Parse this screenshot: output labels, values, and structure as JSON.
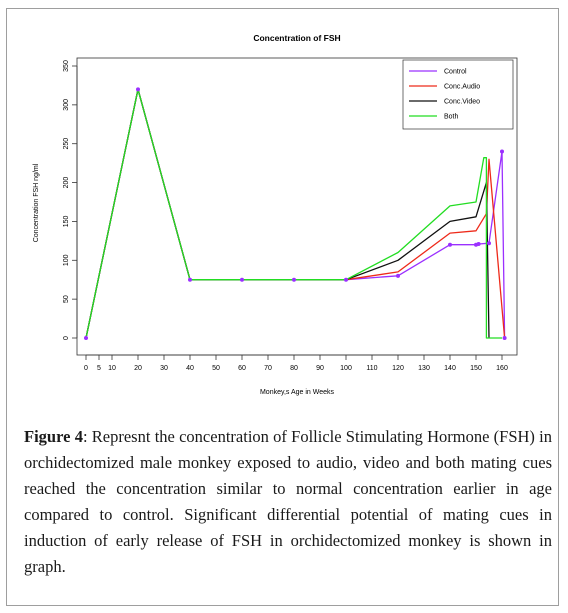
{
  "caption": {
    "label": "Figure 4",
    "text": ": Represnt the concentration of Follicle Stimulating Hormone (FSH) in orchidectomized male monkey exposed to audio, video and both mating cues reached the concentration similar to normal concentration earlier in age compared to control. Significant differential potential of mating cues in induction of early release of FSH in orchidectomized monkey is shown in graph."
  },
  "chart_data": {
    "type": "line",
    "title": "Concentration of FSH",
    "xlabel": "Monkey,s Age in Weeks",
    "ylabel": "Concentration FSH ng/ml",
    "xlim": [
      0,
      160
    ],
    "ylim": [
      0,
      350
    ],
    "x_ticks": [
      0,
      5,
      10,
      20,
      30,
      40,
      50,
      60,
      70,
      80,
      90,
      100,
      110,
      120,
      130,
      140,
      150,
      160
    ],
    "y_ticks": [
      0,
      50,
      100,
      150,
      200,
      250,
      300,
      350
    ],
    "grid": false,
    "legend_position": "top-right",
    "series": [
      {
        "name": "Control",
        "color": "#9b30ff",
        "markers": true,
        "x": [
          0,
          20,
          40,
          60,
          80,
          100,
          120,
          140,
          150,
          151,
          155,
          160,
          161
        ],
        "y": [
          0,
          320,
          75,
          75,
          75,
          75,
          80,
          120,
          120,
          121,
          122,
          240,
          0
        ]
      },
      {
        "name": "Conc.Audio",
        "color": "#ee2a1a",
        "markers": false,
        "x": [
          0,
          20,
          40,
          60,
          80,
          100,
          120,
          140,
          150,
          154,
          155,
          161
        ],
        "y": [
          0,
          320,
          75,
          75,
          75,
          75,
          85,
          135,
          138,
          160,
          230,
          0
        ]
      },
      {
        "name": "Conc.Video",
        "color": "#111111",
        "markers": false,
        "x": [
          0,
          20,
          40,
          60,
          80,
          100,
          120,
          140,
          150,
          154,
          155
        ],
        "y": [
          0,
          320,
          75,
          75,
          75,
          75,
          100,
          150,
          156,
          200,
          0
        ]
      },
      {
        "name": "Both",
        "color": "#22dd22",
        "markers": false,
        "x": [
          0,
          20,
          40,
          60,
          80,
          100,
          120,
          140,
          150,
          153,
          154,
          154,
          160
        ],
        "y": [
          0,
          320,
          75,
          75,
          75,
          75,
          110,
          170,
          175,
          232,
          232,
          0,
          0
        ]
      }
    ]
  }
}
